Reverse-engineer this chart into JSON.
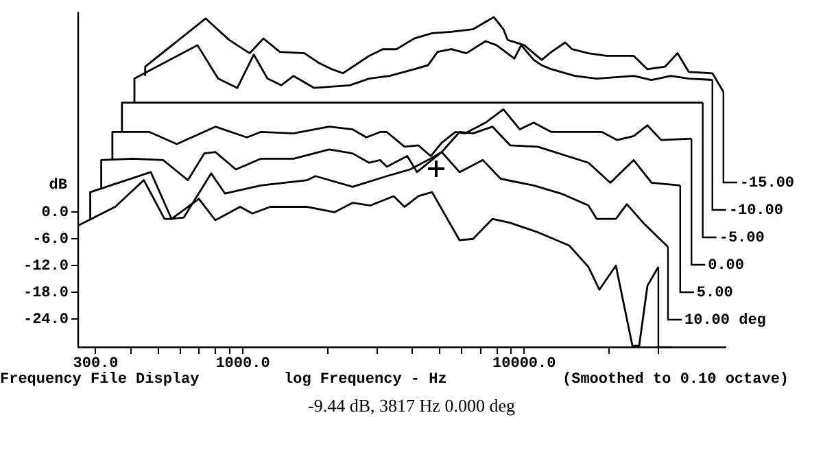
{
  "chart_data": {
    "type": "line",
    "xlabel": "log Frequency - Hz",
    "ylabel": "dB",
    "log": "x",
    "grid": false,
    "legend": false,
    "marker": "none",
    "line_style": "solid",
    "xlim": [
      260,
      52000
    ],
    "xticks": [
      {
        "value": 300,
        "label": "300.0"
      },
      {
        "value": 400,
        "label": null
      },
      {
        "value": 500,
        "label": null
      },
      {
        "value": 600,
        "label": null
      },
      {
        "value": 700,
        "label": null
      },
      {
        "value": 800,
        "label": null
      },
      {
        "value": 900,
        "label": null
      },
      {
        "value": 1000,
        "label": "1000.0"
      },
      {
        "value": 2000,
        "label": null
      },
      {
        "value": 3000,
        "label": null
      },
      {
        "value": 4000,
        "label": null
      },
      {
        "value": 5000,
        "label": null
      },
      {
        "value": 6000,
        "label": null
      },
      {
        "value": 7000,
        "label": null
      },
      {
        "value": 8000,
        "label": null
      },
      {
        "value": 9000,
        "label": null
      },
      {
        "value": 10000,
        "label": "10000.0"
      },
      {
        "value": 20000,
        "label": null
      },
      {
        "value": 30000,
        "label": null
      }
    ],
    "ylim": [
      -30.3,
      45
    ],
    "yticks": [
      {
        "value": 0,
        "label": "0.0"
      },
      {
        "value": -6,
        "label": "-6.0"
      },
      {
        "value": -12,
        "label": "-12.0"
      },
      {
        "value": -18,
        "label": "-18.0"
      },
      {
        "value": -24,
        "label": "-24.0"
      }
    ],
    "annotations": [
      "Frequency File Display",
      "(Smoothed to 0.10 octave)",
      "-9.44 dB, 3817 Hz 0.000 deg"
    ],
    "series": [
      {
        "color": "#000000",
        "x": [
          260,
          352,
          445,
          527,
          558,
          698,
          799,
          978,
          1082,
          1252,
          1695,
          2121,
          2455,
          2842,
          3437,
          3757,
          4209,
          4707,
          5893,
          6586,
          7720,
          8926,
          11170,
          14470,
          16920,
          18510,
          21180,
          21910,
          24250,
          25630,
          27430,
          29990
        ],
        "values": [
          -3,
          1.2,
          7.2,
          -1.5,
          -1.5,
          3,
          -1.8,
          1.2,
          -0.3,
          1.2,
          1.2,
          0,
          2.1,
          1.5,
          3.6,
          1.2,
          3.6,
          4.5,
          -6.3,
          -6,
          -1.5,
          -2.4,
          -4.5,
          -7.5,
          -12.3,
          -17.4,
          -12,
          -16.5,
          -30,
          -30,
          -16.5,
          -12.3
        ]
      },
      {
        "name": "10.00 deg",
        "color": "#000000",
        "x": [
          287,
          287,
          471,
          558,
          617,
          772,
          864,
          1157,
          1695,
          1813,
          2455,
          3250,
          3929,
          4551,
          5092,
          5893,
          7131,
          8250,
          10820,
          13510,
          16920,
          18100,
          21180,
          23170,
          26510,
          32450
        ],
        "values": [
          -1.5,
          4.5,
          9,
          -1.5,
          -1.2,
          8.7,
          4.2,
          6,
          7.2,
          8.1,
          5.7,
          8.1,
          9.6,
          11.7,
          13.5,
          9,
          11.7,
          7.5,
          6,
          4.2,
          1.5,
          -1.5,
          -1.5,
          1.8,
          -2.4,
          -7.8
        ]
      },
      {
        "name": "5.00",
        "color": "#000000",
        "x": [
          314,
          314,
          407,
          521,
          638,
          730,
          799,
          945,
          1157,
          1515,
          2029,
          2455,
          2811,
          3075,
          3250,
          3842,
          4160,
          5092,
          5893,
          6586,
          7720,
          8926,
          11170,
          16920,
          20250,
          24510,
          28370,
          35870
        ],
        "values": [
          5.1,
          11.7,
          12,
          11.7,
          7.2,
          13.2,
          13.5,
          9.6,
          12,
          12,
          14.1,
          13.2,
          11.1,
          11.7,
          10.2,
          12.6,
          9,
          13.5,
          18,
          17.7,
          19.2,
          15,
          14.7,
          11.1,
          6.6,
          11.7,
          6.6,
          6
        ]
      },
      {
        "name": "0.00",
        "color": "#000000",
        "x": [
          344,
          344,
          466,
          583,
          799,
          1034,
          1157,
          1515,
          2029,
          2455,
          2749,
          3075,
          3250,
          3757,
          4209,
          4655,
          5092,
          5697,
          6160,
          7290,
          8440,
          9650,
          10820,
          12500,
          18930,
          21420,
          24510,
          27430,
          30670,
          39320
        ],
        "values": [
          11.7,
          18,
          18,
          15.3,
          19.2,
          16.8,
          18,
          17.7,
          19.2,
          18.6,
          16.8,
          18,
          18,
          14.7,
          15,
          12.6,
          15.6,
          18,
          17.7,
          20.1,
          23.1,
          18.6,
          20.1,
          18,
          18,
          16.2,
          17.1,
          19.5,
          16.2,
          16.5
        ]
      },
      {
        "name": "-5.00",
        "color": "#000000",
        "x": [
          372,
          372,
          43130
        ],
        "values": [
          18,
          24.6,
          24.6
        ]
      },
      {
        "name": "-10.00",
        "color": "#000000",
        "x": [
          412,
          412,
          690,
          817,
          956,
          1094,
          1224,
          1370,
          1515,
          1794,
          2400,
          2811,
          3325,
          4068,
          4551,
          4925,
          5509,
          6230,
          7290,
          7978,
          9230,
          9760,
          10820,
          11550,
          12500,
          15140,
          18100,
          24510,
          28370,
          33180,
          38450,
          46670
        ],
        "values": [
          24.6,
          30,
          37.5,
          30,
          27.9,
          35.4,
          30,
          28.5,
          30.6,
          27.9,
          28.5,
          30,
          30.6,
          32.1,
          33,
          36,
          36.6,
          35.7,
          38.4,
          37.5,
          34.5,
          37.5,
          34.2,
          33,
          32.1,
          30.6,
          30,
          30.6,
          29.7,
          30.6,
          30,
          29.7
        ]
      },
      {
        "name": "-15.00",
        "color": "#000000",
        "x": [
          450,
          450,
          738,
          894,
          1058,
          1184,
          1354,
          1657,
          1854,
          2074,
          2270,
          2811,
          3145,
          3515,
          4068,
          4707,
          5509,
          6586,
          7800,
          8440,
          8730,
          10000,
          11550,
          12500,
          13990,
          14800,
          16920,
          19580,
          24510,
          27430,
          31720,
          35080,
          38450,
          46670,
          51090
        ],
        "values": [
          30.6,
          32.7,
          43.5,
          38.7,
          35.7,
          39,
          36,
          35.7,
          33.6,
          32.1,
          31.2,
          35.1,
          36.6,
          36.6,
          39,
          40.2,
          40.5,
          41.1,
          43.8,
          41.1,
          38.7,
          37.5,
          34.2,
          36,
          38.1,
          36.6,
          35.7,
          35.1,
          35.1,
          32.1,
          32.7,
          35.7,
          31.5,
          31.2,
          27
        ]
      }
    ]
  }
}
